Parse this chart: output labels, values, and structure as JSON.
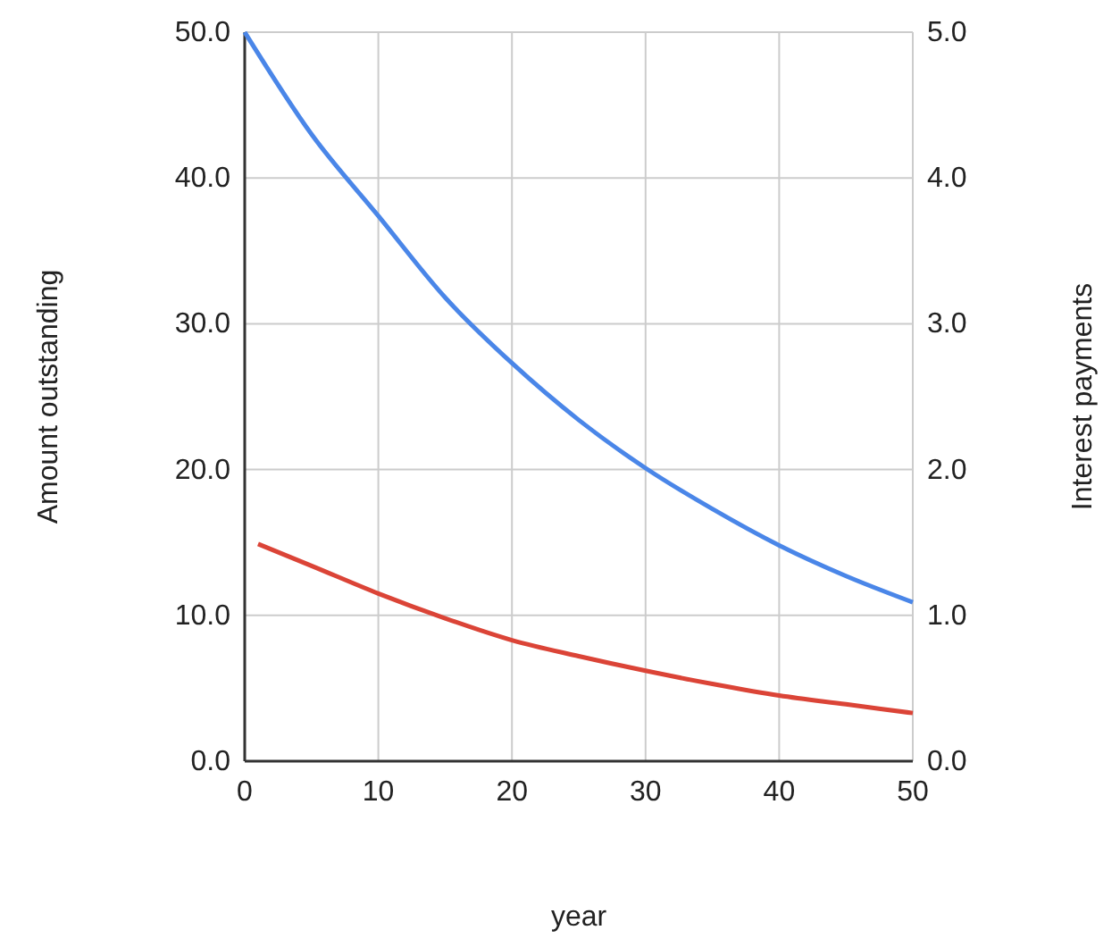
{
  "chart_data": {
    "type": "line",
    "xlabel": "year",
    "ylabel": "Amount outstanding",
    "y2label": "Interest payments",
    "xlim": [
      0,
      50
    ],
    "xticks": [
      0,
      10,
      20,
      30,
      40,
      50
    ],
    "ylim": [
      0,
      50
    ],
    "yticks": [
      {
        "value": 0,
        "label": "0.0"
      },
      {
        "value": 10,
        "label": "10.0"
      },
      {
        "value": 20,
        "label": "20.0"
      },
      {
        "value": 30,
        "label": "30.0"
      },
      {
        "value": 40,
        "label": "40.0"
      },
      {
        "value": 50,
        "label": "50.0"
      }
    ],
    "y2lim": [
      0,
      5
    ],
    "y2ticks": [
      {
        "value": 0,
        "label": "0.0"
      },
      {
        "value": 1,
        "label": "1.0"
      },
      {
        "value": 2,
        "label": "2.0"
      },
      {
        "value": 3,
        "label": "3.0"
      },
      {
        "value": 4,
        "label": "4.0"
      },
      {
        "value": 5,
        "label": "5.0"
      }
    ],
    "grid": true,
    "series": [
      {
        "color": "#4a86e8",
        "x": [
          0,
          5,
          10,
          15,
          20,
          25,
          30,
          35,
          40,
          45,
          50
        ],
        "values": [
          50,
          43.0,
          37.4,
          31.8,
          27.3,
          23.4,
          20.1,
          17.3,
          14.8,
          12.7,
          10.9
        ]
      },
      {
        "color": "#db4437",
        "axis": "y2",
        "x": [
          1,
          5,
          10,
          15,
          20,
          25,
          30,
          35,
          40,
          45,
          50
        ],
        "values": [
          1.49,
          1.34,
          1.15,
          0.98,
          0.83,
          0.72,
          0.62,
          0.53,
          0.45,
          0.39,
          0.33
        ]
      }
    ]
  }
}
